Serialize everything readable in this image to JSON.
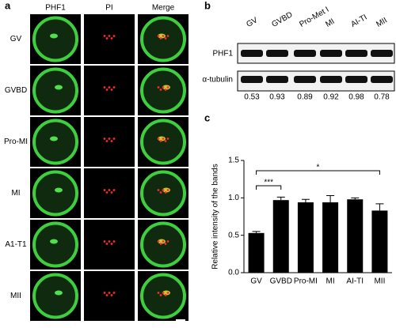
{
  "panel_a": {
    "label": "a",
    "columns": [
      "PHF1",
      "PI",
      "Merge"
    ],
    "rows": [
      "GV",
      "GVBD",
      "Pro-MI",
      "MI",
      "A1-T1",
      "MII"
    ]
  },
  "panel_b": {
    "label": "b",
    "lanes": [
      "GV",
      "GVBD",
      "Pro-Met I",
      "MI",
      "AI-TI",
      "MII"
    ],
    "blots": [
      "PHF1",
      "α-tubulin"
    ],
    "ratios": [
      "0.53",
      "0.93",
      "0.89",
      "0.92",
      "0.98",
      "0.78"
    ]
  },
  "chart_data": {
    "type": "bar",
    "panel_label": "c",
    "ylabel": "Relative intensity of the bands",
    "categories": [
      "GV",
      "GVBD",
      "Pro-MI",
      "MI",
      "AI-TI",
      "MII"
    ],
    "values": [
      0.53,
      0.97,
      0.94,
      0.94,
      0.98,
      0.83
    ],
    "errors": [
      0.02,
      0.04,
      0.04,
      0.09,
      0.02,
      0.09
    ],
    "color": "#000000",
    "ylim": [
      0,
      1.5
    ],
    "yticks": [
      {
        "value": 0,
        "label": "0.0"
      },
      {
        "value": 0.5,
        "label": "0.5"
      },
      {
        "value": 1,
        "label": "1.0"
      },
      {
        "value": 1.5,
        "label": "1.5"
      }
    ],
    "annotations": [
      "***",
      "*"
    ]
  }
}
